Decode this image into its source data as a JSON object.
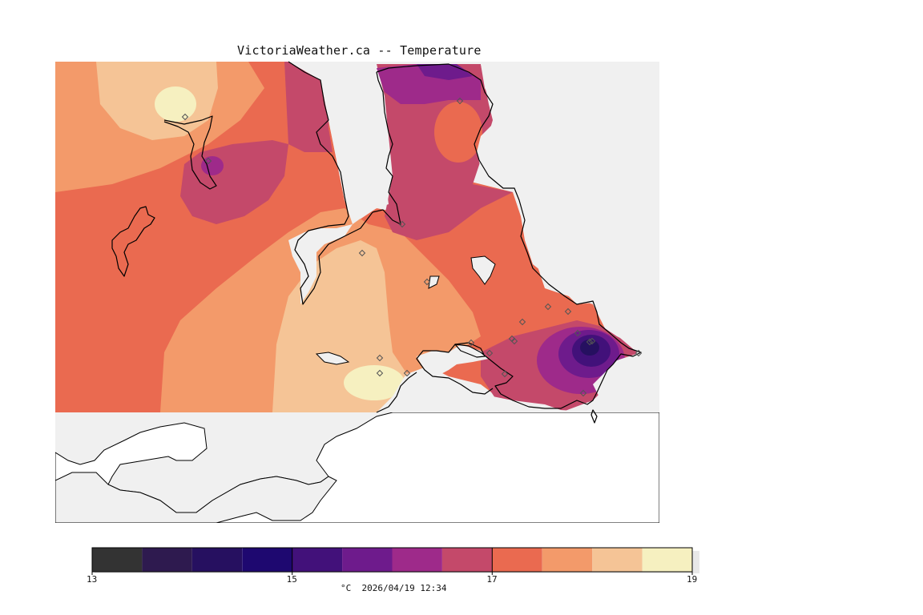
{
  "title": "VictoriaWeather.ca -- Temperature",
  "map": {
    "variable": "Temperature",
    "units": "°C",
    "timestamp": "2026/04/19 12:34",
    "colors": {
      "water": "#f0f0f0",
      "land_no_data": "#ffffff",
      "coastline": "#000000",
      "station_marker": "#555555"
    },
    "station_count": 22
  },
  "legend": {
    "range": [
      13,
      19
    ],
    "tick_labels": [
      "13",
      "15",
      "17",
      "19"
    ],
    "bins": [
      {
        "from": 13.0,
        "to": 13.5,
        "color": "#333333"
      },
      {
        "from": 13.5,
        "to": 14.0,
        "color": "#2e1a4f"
      },
      {
        "from": 14.0,
        "to": 14.5,
        "color": "#261060"
      },
      {
        "from": 14.5,
        "to": 15.0,
        "color": "#1e0870"
      },
      {
        "from": 15.0,
        "to": 15.5,
        "color": "#42117a"
      },
      {
        "from": 15.5,
        "to": 16.0,
        "color": "#6e1b8c"
      },
      {
        "from": 16.0,
        "to": 16.5,
        "color": "#9e2a8a"
      },
      {
        "from": 16.5,
        "to": 17.0,
        "color": "#c4496a"
      },
      {
        "from": 17.0,
        "to": 17.5,
        "color": "#ea6a50"
      },
      {
        "from": 17.5,
        "to": 18.0,
        "color": "#f39a6a"
      },
      {
        "from": 18.0,
        "to": 18.5,
        "color": "#f5c496"
      },
      {
        "from": 18.5,
        "to": 19.0,
        "color": "#f6f0c0"
      }
    ],
    "caption": "°C  2026/04/19 12:34"
  }
}
